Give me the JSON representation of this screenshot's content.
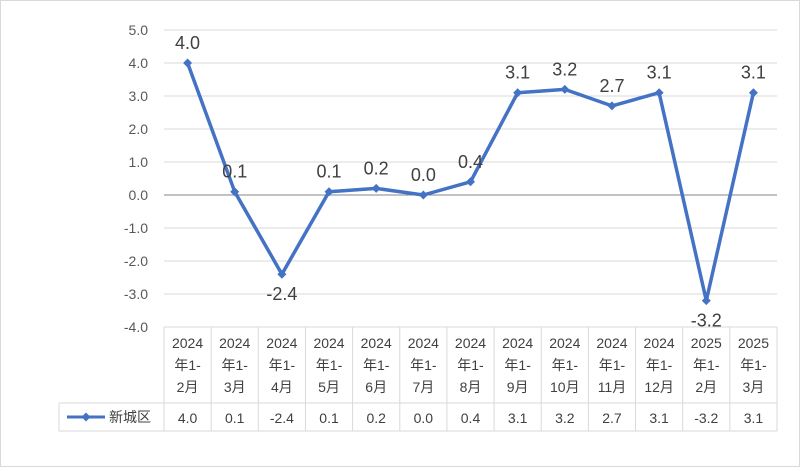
{
  "chart_data": {
    "type": "line",
    "categories": [
      [
        "2024",
        "年1-",
        "2月"
      ],
      [
        "2024",
        "年1-",
        "3月"
      ],
      [
        "2024",
        "年1-",
        "4月"
      ],
      [
        "2024",
        "年1-",
        "5月"
      ],
      [
        "2024",
        "年1-",
        "6月"
      ],
      [
        "2024",
        "年1-",
        "7月"
      ],
      [
        "2024",
        "年1-",
        "8月"
      ],
      [
        "2024",
        "年1-",
        "9月"
      ],
      [
        "2024",
        "年1-",
        "10月"
      ],
      [
        "2024",
        "年1-",
        "11月"
      ],
      [
        "2024",
        "年1-",
        "12月"
      ],
      [
        "2025",
        "年1-",
        "2月"
      ],
      [
        "2025",
        "年1-",
        "3月"
      ]
    ],
    "series": [
      {
        "name": "新城区",
        "values": [
          4.0,
          0.1,
          -2.4,
          0.1,
          0.2,
          0.0,
          0.4,
          3.1,
          3.2,
          2.7,
          3.1,
          -3.2,
          3.1
        ],
        "labels": [
          "4.0",
          "0.1",
          "-2.4",
          "0.1",
          "0.2",
          "0.0",
          "0.4",
          "3.1",
          "3.2",
          "2.7",
          "3.1",
          "-3.2",
          "3.1"
        ]
      }
    ],
    "ylim": [
      -4.0,
      5.0
    ],
    "yticks": [
      "5.0",
      "4.0",
      "3.0",
      "2.0",
      "1.0",
      "0.0",
      "-1.0",
      "-2.0",
      "-3.0",
      "-4.0"
    ],
    "grid": true,
    "data_table": true,
    "legend": "data-table-left",
    "colors": {
      "line": "#4472c4",
      "grid": "#d9d9d9",
      "zero_axis": "#868686"
    }
  }
}
